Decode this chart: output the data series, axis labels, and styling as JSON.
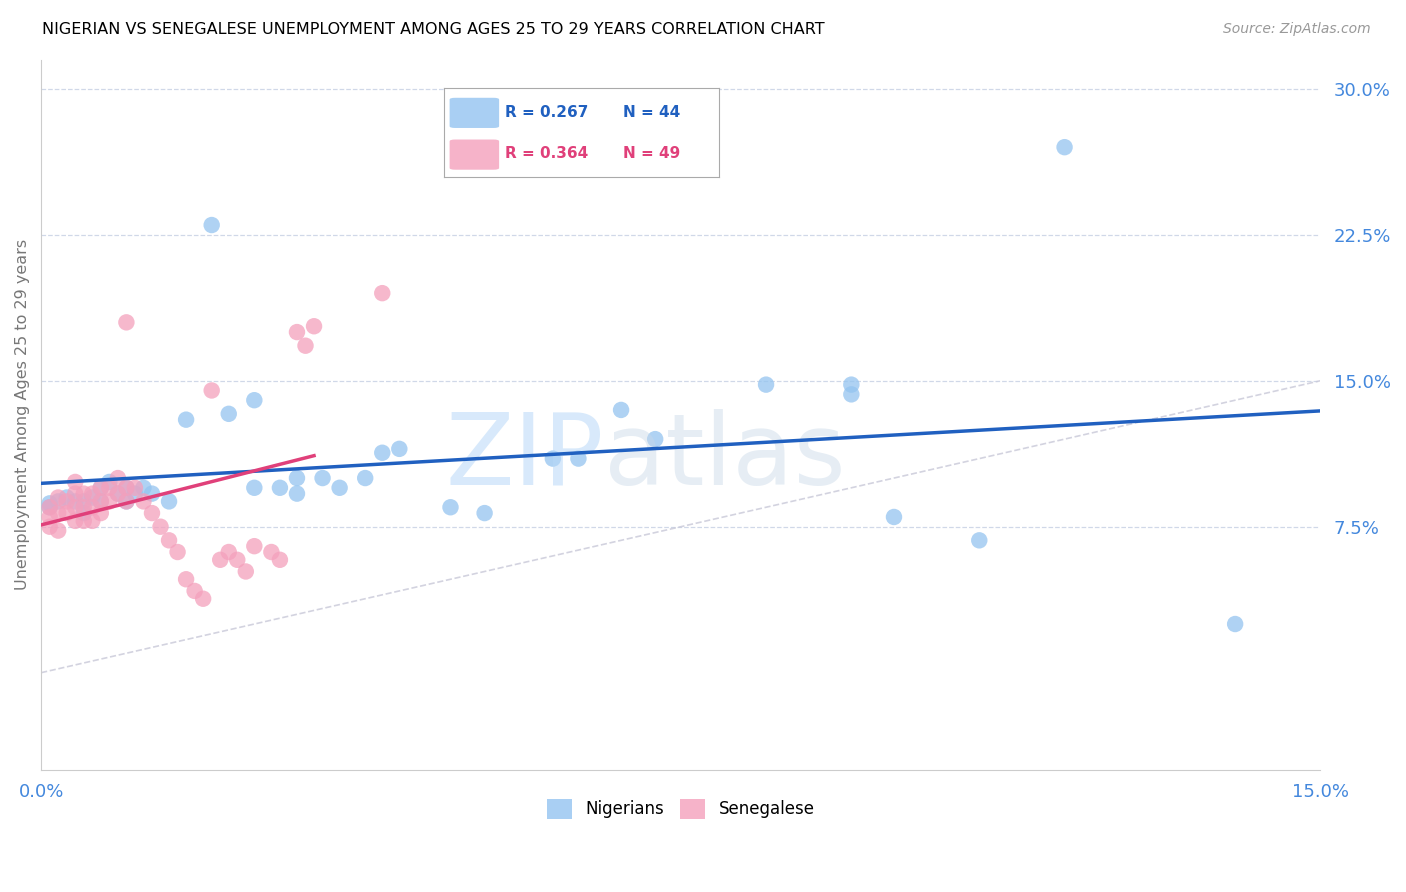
{
  "title": "NIGERIAN VS SENEGALESE UNEMPLOYMENT AMONG AGES 25 TO 29 YEARS CORRELATION CHART",
  "source": "Source: ZipAtlas.com",
  "ylabel": "Unemployment Among Ages 25 to 29 years",
  "xlim": [
    0.0,
    0.15
  ],
  "ylim": [
    -0.05,
    0.315
  ],
  "xticks": [
    0.0,
    0.025,
    0.05,
    0.075,
    0.1,
    0.125,
    0.15
  ],
  "xtick_labels": [
    "0.0%",
    "",
    "",
    "",
    "",
    "",
    "15.0%"
  ],
  "yticks_right": [
    0.075,
    0.15,
    0.225,
    0.3
  ],
  "ytick_labels_right": [
    "7.5%",
    "15.0%",
    "22.5%",
    "30.0%"
  ],
  "nigerian_R": 0.267,
  "nigerian_N": 44,
  "senegalese_R": 0.364,
  "senegalese_N": 49,
  "blue_dot_color": "#94c4f0",
  "pink_dot_color": "#f4a0bc",
  "blue_line_color": "#2060c0",
  "pink_line_color": "#e0407a",
  "tick_color": "#4488dd",
  "grid_color": "#d0d8e8",
  "nigerian_x": [
    0.001,
    0.001,
    0.002,
    0.003,
    0.004,
    0.005,
    0.005,
    0.006,
    0.007,
    0.007,
    0.008,
    0.009,
    0.01,
    0.01,
    0.011,
    0.012,
    0.013,
    0.015,
    0.017,
    0.02,
    0.022,
    0.025,
    0.025,
    0.028,
    0.03,
    0.03,
    0.033,
    0.035,
    0.038,
    0.04,
    0.042,
    0.048,
    0.052,
    0.06,
    0.063,
    0.068,
    0.072,
    0.085,
    0.095,
    0.095,
    0.1,
    0.11,
    0.12,
    0.14
  ],
  "nigerian_y": [
    0.085,
    0.087,
    0.088,
    0.09,
    0.088,
    0.082,
    0.088,
    0.09,
    0.088,
    0.095,
    0.098,
    0.092,
    0.095,
    0.088,
    0.092,
    0.095,
    0.092,
    0.088,
    0.13,
    0.23,
    0.133,
    0.14,
    0.095,
    0.095,
    0.1,
    0.092,
    0.1,
    0.095,
    0.1,
    0.113,
    0.115,
    0.085,
    0.082,
    0.11,
    0.11,
    0.135,
    0.12,
    0.148,
    0.148,
    0.143,
    0.08,
    0.068,
    0.27,
    0.025
  ],
  "senegalese_x": [
    0.001,
    0.001,
    0.001,
    0.002,
    0.002,
    0.002,
    0.003,
    0.003,
    0.004,
    0.004,
    0.004,
    0.004,
    0.005,
    0.005,
    0.005,
    0.006,
    0.006,
    0.006,
    0.007,
    0.007,
    0.007,
    0.008,
    0.008,
    0.009,
    0.009,
    0.01,
    0.01,
    0.01,
    0.011,
    0.012,
    0.013,
    0.014,
    0.015,
    0.016,
    0.017,
    0.018,
    0.019,
    0.02,
    0.021,
    0.022,
    0.023,
    0.024,
    0.025,
    0.027,
    0.028,
    0.03,
    0.031,
    0.032,
    0.04
  ],
  "senegalese_y": [
    0.085,
    0.08,
    0.075,
    0.09,
    0.082,
    0.073,
    0.088,
    0.082,
    0.098,
    0.092,
    0.085,
    0.078,
    0.092,
    0.085,
    0.078,
    0.092,
    0.085,
    0.078,
    0.095,
    0.088,
    0.082,
    0.095,
    0.088,
    0.1,
    0.092,
    0.18,
    0.095,
    0.088,
    0.095,
    0.088,
    0.082,
    0.075,
    0.068,
    0.062,
    0.048,
    0.042,
    0.038,
    0.145,
    0.058,
    0.062,
    0.058,
    0.052,
    0.065,
    0.062,
    0.058,
    0.175,
    0.168,
    0.178,
    0.195
  ],
  "watermark_zip_color": "#b8d8f8",
  "watermark_atlas_color": "#c8d8e8"
}
